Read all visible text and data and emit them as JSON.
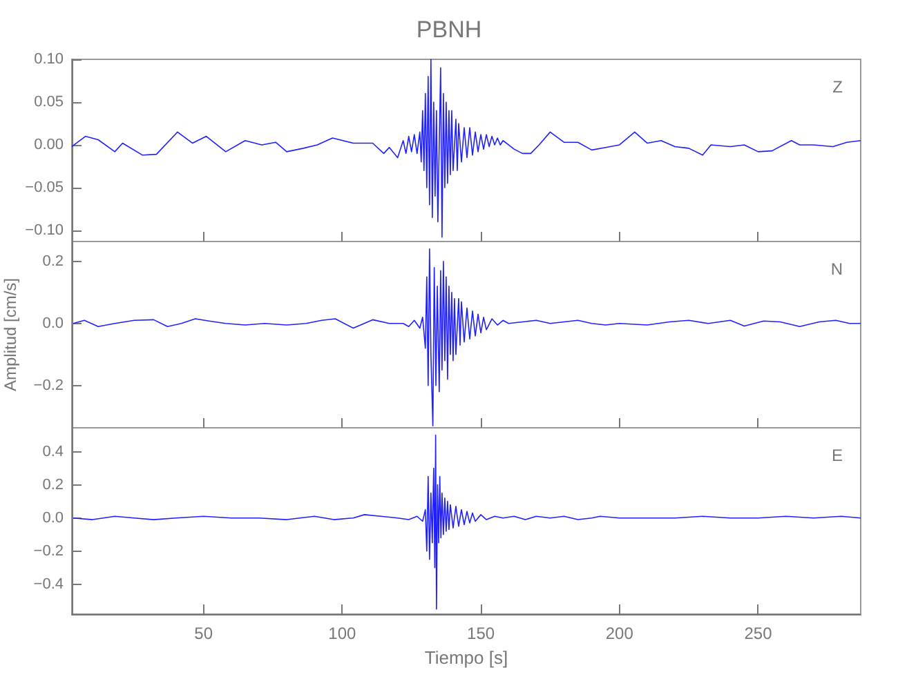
{
  "chart_data": [
    {
      "type": "line",
      "title": "PBNH",
      "annotations": [
        "Z"
      ],
      "tick_labels": "y",
      "xlim": [
        2.5,
        287
      ],
      "xticks": [
        50,
        100,
        150,
        200,
        250
      ],
      "ylim": [
        -0.113,
        0.1
      ],
      "yticks": [
        {
          "value": 0.1,
          "label": "0.10"
        },
        {
          "value": 0.05,
          "label": "0.05"
        },
        {
          "value": 0,
          "label": "0.00"
        },
        {
          "value": -0.05,
          "label": "−0.05"
        },
        {
          "value": -0.1,
          "label": "−0.10"
        }
      ],
      "series": [
        {
          "color": "#1f1fff",
          "x": [
            2.5,
            7.4,
            12,
            18,
            20.8,
            28,
            33,
            40.6,
            46,
            51,
            58,
            65,
            71,
            76,
            80,
            86,
            91,
            96.5,
            104,
            111,
            115,
            117,
            120,
            122,
            123,
            124,
            125,
            126,
            127,
            128,
            128.5,
            129,
            129.5,
            130,
            130.5,
            131,
            131.5,
            132,
            132.5,
            133,
            133.5,
            134,
            134.5,
            135.5,
            136,
            136.5,
            137,
            137.5,
            138,
            138.5,
            139,
            139.5,
            140,
            141,
            141.5,
            142,
            143,
            144,
            145,
            146,
            147,
            148,
            149,
            150,
            151,
            152,
            153,
            154,
            155,
            156,
            157,
            158,
            160,
            162,
            165,
            168,
            171,
            175,
            180,
            185,
            190,
            195,
            200,
            205.5,
            210,
            215,
            220,
            225,
            230,
            233,
            240,
            245,
            250,
            255,
            262,
            265,
            270,
            277,
            282,
            287
          ],
          "values": [
            -0.002,
            0.01,
            0.006,
            -0.008,
            0.002,
            -0.012,
            -0.011,
            0.015,
            0.002,
            0.01,
            -0.008,
            0.005,
            0,
            0.003,
            -0.008,
            -0.004,
            0,
            0.008,
            0.002,
            0.002,
            -0.01,
            -0.003,
            -0.015,
            0.005,
            -0.01,
            0.01,
            -0.008,
            0.012,
            -0.01,
            0.015,
            -0.02,
            0.04,
            -0.03,
            0.06,
            -0.05,
            0.08,
            -0.07,
            0.1,
            -0.085,
            0.05,
            -0.06,
            0.04,
            -0.09,
            0.09,
            -0.108,
            0.06,
            -0.05,
            0.05,
            -0.045,
            0.04,
            -0.035,
            0.04,
            -0.03,
            0.03,
            -0.03,
            0.025,
            -0.02,
            0.02,
            -0.015,
            0.02,
            -0.012,
            0.015,
            -0.008,
            0.012,
            -0.005,
            0.012,
            -0.002,
            0.01,
            0,
            0.008,
            0,
            0.005,
            0,
            -0.005,
            -0.01,
            -0.01,
            0,
            0.015,
            0.003,
            0.003,
            -0.006,
            -0.003,
            0,
            0.015,
            0.002,
            0.005,
            -0.002,
            -0.004,
            -0.012,
            0,
            -0.002,
            0,
            -0.008,
            -0.007,
            0.005,
            0,
            0,
            -0.002,
            0.003,
            0.005
          ]
        }
      ]
    },
    {
      "type": "line",
      "ylabel": "Amplitud [cm/s]",
      "annotations": [
        "N"
      ],
      "tick_labels": "y",
      "xlim": [
        2.5,
        287
      ],
      "xticks": [
        50,
        100,
        150,
        200,
        250
      ],
      "ylim": [
        -0.336,
        0.264
      ],
      "yticks": [
        {
          "value": 0.2,
          "label": "0.2"
        },
        {
          "value": 0,
          "label": "0.0"
        },
        {
          "value": -0.2,
          "label": "−0.2"
        }
      ],
      "series": [
        {
          "color": "#1f1fff",
          "x": [
            3,
            7,
            12,
            18,
            25,
            32,
            37,
            42,
            47,
            52,
            58,
            65,
            72,
            80,
            87,
            92.6,
            97.5,
            104,
            111,
            117,
            122,
            124,
            126,
            128,
            129,
            130,
            130.5,
            131,
            131.5,
            132,
            132.7,
            133.2,
            133.8,
            134.3,
            135,
            135.5,
            136,
            136.5,
            137,
            137.5,
            138,
            138.5,
            139,
            139.5,
            140,
            140.5,
            141,
            142,
            142.5,
            143,
            144,
            145,
            146,
            147,
            148,
            149,
            150,
            151,
            152,
            154,
            156,
            158,
            160,
            165,
            170,
            175,
            180,
            185,
            190,
            195,
            200,
            210,
            218,
            225,
            232,
            240,
            245,
            252,
            258,
            265,
            272,
            278,
            283,
            287
          ],
          "values": [
            0,
            0.01,
            -0.01,
            0,
            0.01,
            0.012,
            -0.01,
            0,
            0.015,
            0.008,
            0,
            -0.005,
            0,
            -0.005,
            0,
            0.01,
            0.015,
            -0.015,
            0.012,
            0,
            0,
            -0.01,
            0.01,
            -0.015,
            0.02,
            -0.08,
            0.15,
            -0.2,
            0.24,
            -0.1,
            -0.33,
            0.18,
            -0.2,
            0.12,
            -0.22,
            0.17,
            -0.15,
            0.2,
            -0.12,
            0.15,
            -0.18,
            0.12,
            -0.1,
            0.1,
            -0.12,
            0.08,
            -0.1,
            0.08,
            -0.07,
            0.07,
            -0.06,
            0.05,
            -0.05,
            0.04,
            -0.04,
            0.03,
            -0.03,
            0.02,
            -0.02,
            0.015,
            -0.005,
            0.01,
            0,
            0.005,
            0.01,
            0,
            0.005,
            0.01,
            0,
            -0.005,
            0,
            -0.005,
            0.005,
            0.01,
            0,
            0.01,
            -0.008,
            0.008,
            0.005,
            -0.01,
            0.005,
            0.01,
            0,
            0
          ]
        }
      ]
    },
    {
      "type": "line",
      "xlabel": "Tiempo [s]",
      "annotations": [
        "E"
      ],
      "xlim": [
        2.5,
        287
      ],
      "xticks": [
        50,
        100,
        150,
        200,
        250
      ],
      "ylim": [
        -0.58,
        0.544
      ],
      "yticks": [
        {
          "value": 0.4,
          "label": "0.4"
        },
        {
          "value": 0.2,
          "label": "0.2"
        },
        {
          "value": 0,
          "label": "0.0"
        },
        {
          "value": -0.2,
          "label": "−0.2"
        },
        {
          "value": -0.4,
          "label": "−0.4"
        }
      ],
      "series": [
        {
          "color": "#1f1fff",
          "x": [
            3,
            10,
            18,
            25,
            32,
            40,
            50,
            60,
            70,
            80,
            90,
            97,
            104,
            108,
            114,
            120,
            124,
            127,
            129,
            130,
            130.5,
            131,
            131.5,
            132,
            132.5,
            133,
            133.4,
            133.7,
            134,
            134.4,
            134.8,
            135.2,
            135.6,
            136,
            136.5,
            137,
            137.5,
            138,
            138.5,
            139,
            140,
            141,
            142,
            143,
            144,
            145,
            146,
            147,
            148,
            150,
            152,
            155,
            158,
            162,
            166,
            170,
            175,
            180,
            185,
            190,
            193,
            200,
            210,
            220,
            230,
            240,
            250,
            260,
            270,
            280,
            287
          ],
          "values": [
            0,
            -0.01,
            0.01,
            0,
            -0.01,
            0,
            0.01,
            0,
            0,
            -0.01,
            0.01,
            -0.01,
            0,
            0.02,
            0.01,
            0,
            -0.01,
            0.01,
            -0.02,
            0.05,
            -0.2,
            0.25,
            -0.25,
            0.15,
            -0.15,
            0.3,
            -0.3,
            0.5,
            -0.55,
            0.2,
            -0.15,
            0.25,
            -0.12,
            0.15,
            -0.1,
            0.12,
            -0.08,
            0.1,
            -0.07,
            0.08,
            -0.06,
            0.07,
            -0.05,
            0.05,
            -0.04,
            0.04,
            -0.03,
            0.03,
            -0.02,
            0.02,
            -0.01,
            0.01,
            0,
            0.01,
            -0.01,
            0.01,
            0,
            0.01,
            -0.01,
            0,
            0.01,
            0,
            0,
            0,
            0.01,
            0,
            0,
            0.01,
            0,
            0.01,
            0
          ]
        }
      ]
    }
  ]
}
